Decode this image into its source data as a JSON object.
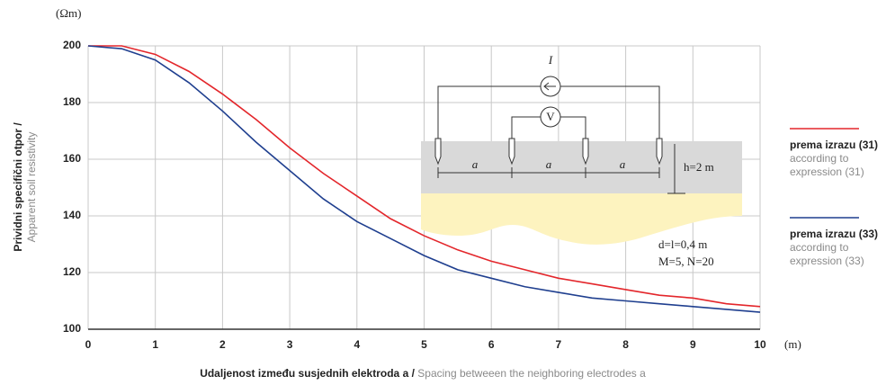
{
  "chart_data": {
    "type": "line",
    "y_unit": "(Ωm)",
    "x_unit": "(m)",
    "ylabel": "Prividni specifični otpor /",
    "ylabel_en": "Apparent soil resistivity",
    "xlabel": "Udaljenost između susjednih elektroda a /",
    "xlabel_en": "Spacing betweeen the neighboring electrodes a",
    "x": [
      0,
      0.5,
      1,
      1.5,
      2,
      2.5,
      3,
      3.5,
      4,
      4.5,
      5,
      5.5,
      6,
      6.5,
      7,
      7.5,
      8,
      8.5,
      9,
      9.5,
      10
    ],
    "series": [
      {
        "name": "prema izrazu (31)",
        "name_en": "according to expression (31)",
        "color": "#e3262b",
        "values": [
          200,
          200,
          197,
          191,
          183,
          174,
          164,
          155,
          147,
          139,
          133,
          128,
          124,
          121,
          118,
          116,
          114,
          112,
          111,
          109,
          108
        ]
      },
      {
        "name": "prema izrazu (33)",
        "name_en": "according to expression (33)",
        "color": "#1f3f8f",
        "values": [
          200,
          199,
          195,
          187,
          177,
          166,
          156,
          146,
          138,
          132,
          126,
          121,
          118,
          115,
          113,
          111,
          110,
          109,
          108,
          107,
          106
        ]
      }
    ],
    "xlim": [
      0,
      10
    ],
    "xticks": [
      0,
      1,
      2,
      3,
      4,
      5,
      6,
      7,
      8,
      9,
      10
    ],
    "ylim": [
      100,
      200
    ],
    "yticks": [
      100,
      120,
      140,
      160,
      180,
      200
    ],
    "grid": true,
    "inset": {
      "current": "I",
      "voltmeter": "V",
      "spacing": [
        "a",
        "a",
        "a"
      ],
      "depth": "h=2 m",
      "params": [
        "d=l=0,4 m",
        "M=5, N=20"
      ]
    }
  }
}
